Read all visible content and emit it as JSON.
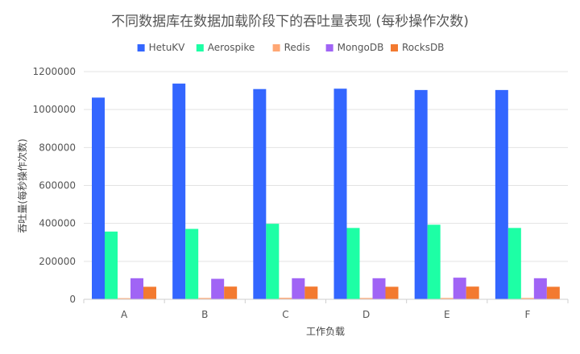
{
  "chart_data": {
    "type": "bar",
    "title": "不同数据库在数据加载阶段下的吞吐量表现 (每秒操作次数)",
    "xlabel": "工作负载",
    "ylabel": "吞吐量(每秒操作次数)",
    "categories": [
      "A",
      "B",
      "C",
      "D",
      "E",
      "F"
    ],
    "ylim": [
      0,
      1200000
    ],
    "yticks": [
      0,
      200000,
      400000,
      600000,
      800000,
      1000000,
      1200000
    ],
    "ytick_labels": [
      "0",
      "200000",
      "400000",
      "600000",
      "800000",
      "1000000",
      "1200000"
    ],
    "grid": true,
    "legend_position": "top-center",
    "series": [
      {
        "name": "HetuKV",
        "color": "#3366ff",
        "values": [
          1063000,
          1137000,
          1108000,
          1110000,
          1103000,
          1103000
        ]
      },
      {
        "name": "Aerospike",
        "color": "#1dffa5",
        "values": [
          357000,
          371000,
          398000,
          376000,
          393000,
          376000
        ]
      },
      {
        "name": "Redis",
        "color": "#ffa774",
        "values": [
          6000,
          7000,
          8000,
          7000,
          7000,
          7000
        ]
      },
      {
        "name": "MongoDB",
        "color": "#a064f5",
        "values": [
          111000,
          108000,
          111000,
          111000,
          114000,
          111000
        ]
      },
      {
        "name": "RocksDB",
        "color": "#f37a30",
        "values": [
          66000,
          67000,
          67000,
          66000,
          67000,
          66000
        ]
      }
    ]
  }
}
